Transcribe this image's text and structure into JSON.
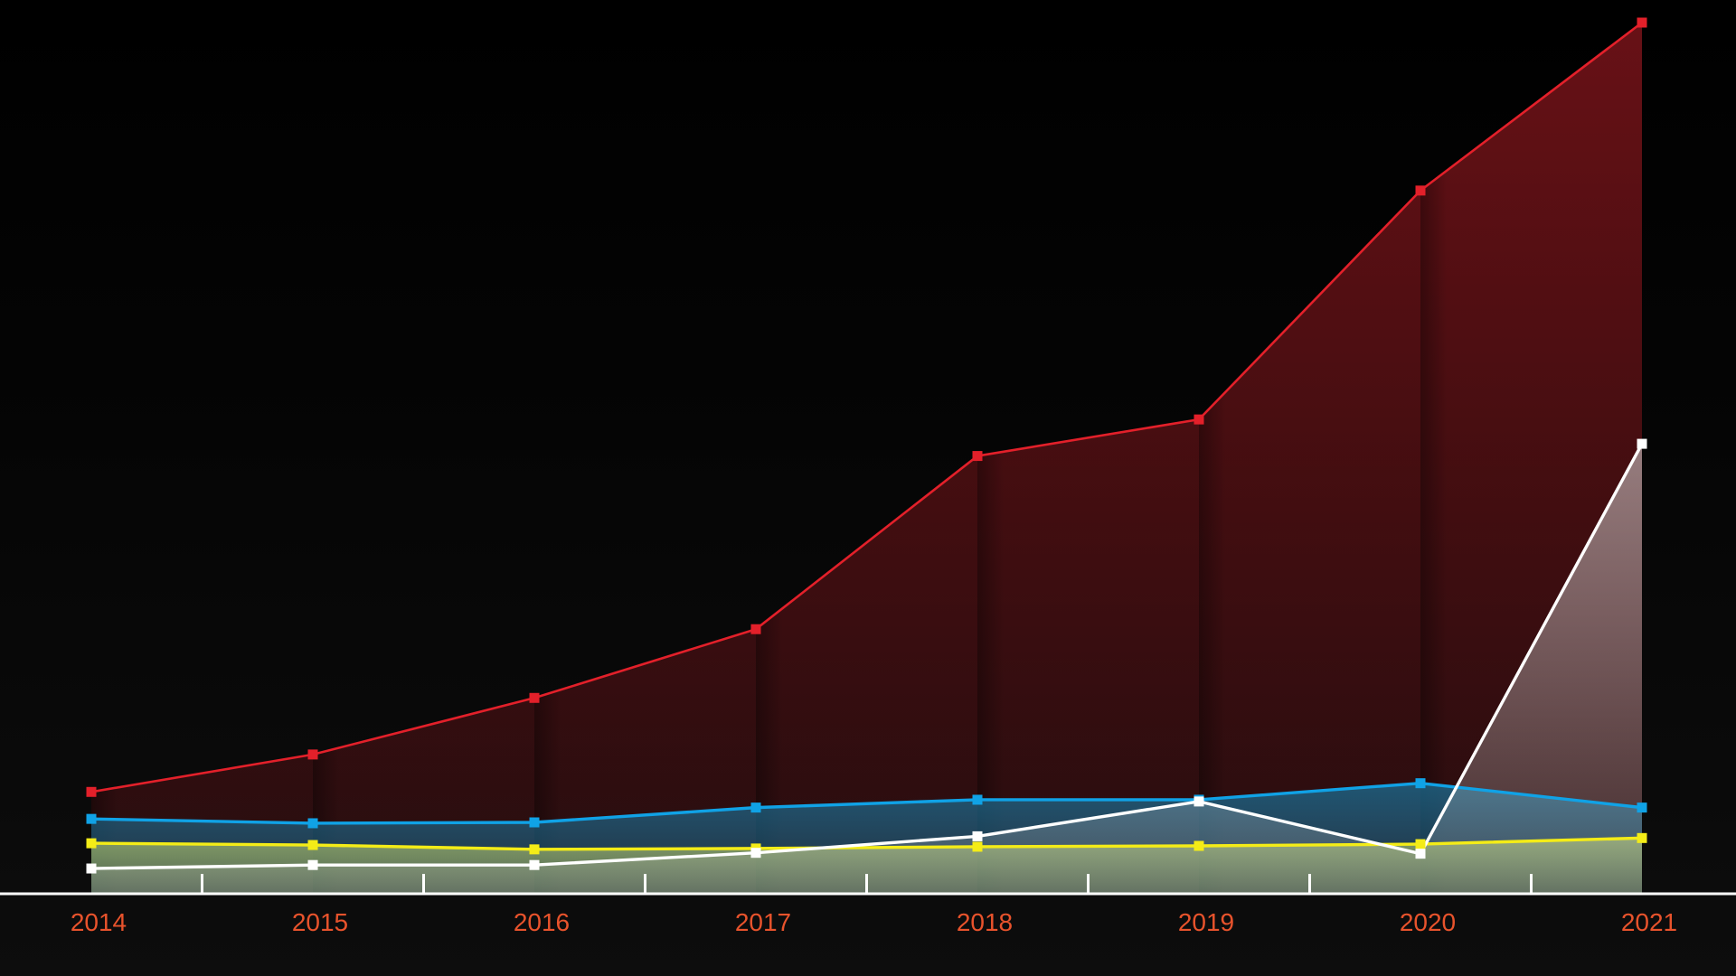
{
  "chart_data": {
    "type": "area",
    "categories": [
      "2014",
      "2015",
      "2016",
      "2017",
      "2018",
      "2019",
      "2020",
      "2021"
    ],
    "ylim": [
      0,
      100
    ],
    "grid": false,
    "legend": "none",
    "tick_label_color": "#e8532c",
    "axis_color": "#ffffff",
    "series": [
      {
        "color": "#e3202a",
        "fill": "#7a141a",
        "values": [
          11.6,
          15.9,
          22.4,
          30.3,
          50.2,
          54.4,
          80.7,
          100
        ]
      },
      {
        "color": "#10a2e6",
        "fill": "#1b6f95",
        "values": [
          8.5,
          8.0,
          8.1,
          9.8,
          10.7,
          10.7,
          12.6,
          9.8
        ]
      },
      {
        "color": "#f4ec17",
        "fill": "#a4b96a",
        "values": [
          5.7,
          5.5,
          5.0,
          5.1,
          5.3,
          5.4,
          5.6,
          6.3
        ]
      },
      {
        "color": "#ffffff",
        "fill": "#d8d8d8",
        "values": [
          2.8,
          3.2,
          3.2,
          4.6,
          6.5,
          10.5,
          4.5,
          51.6
        ]
      }
    ]
  }
}
